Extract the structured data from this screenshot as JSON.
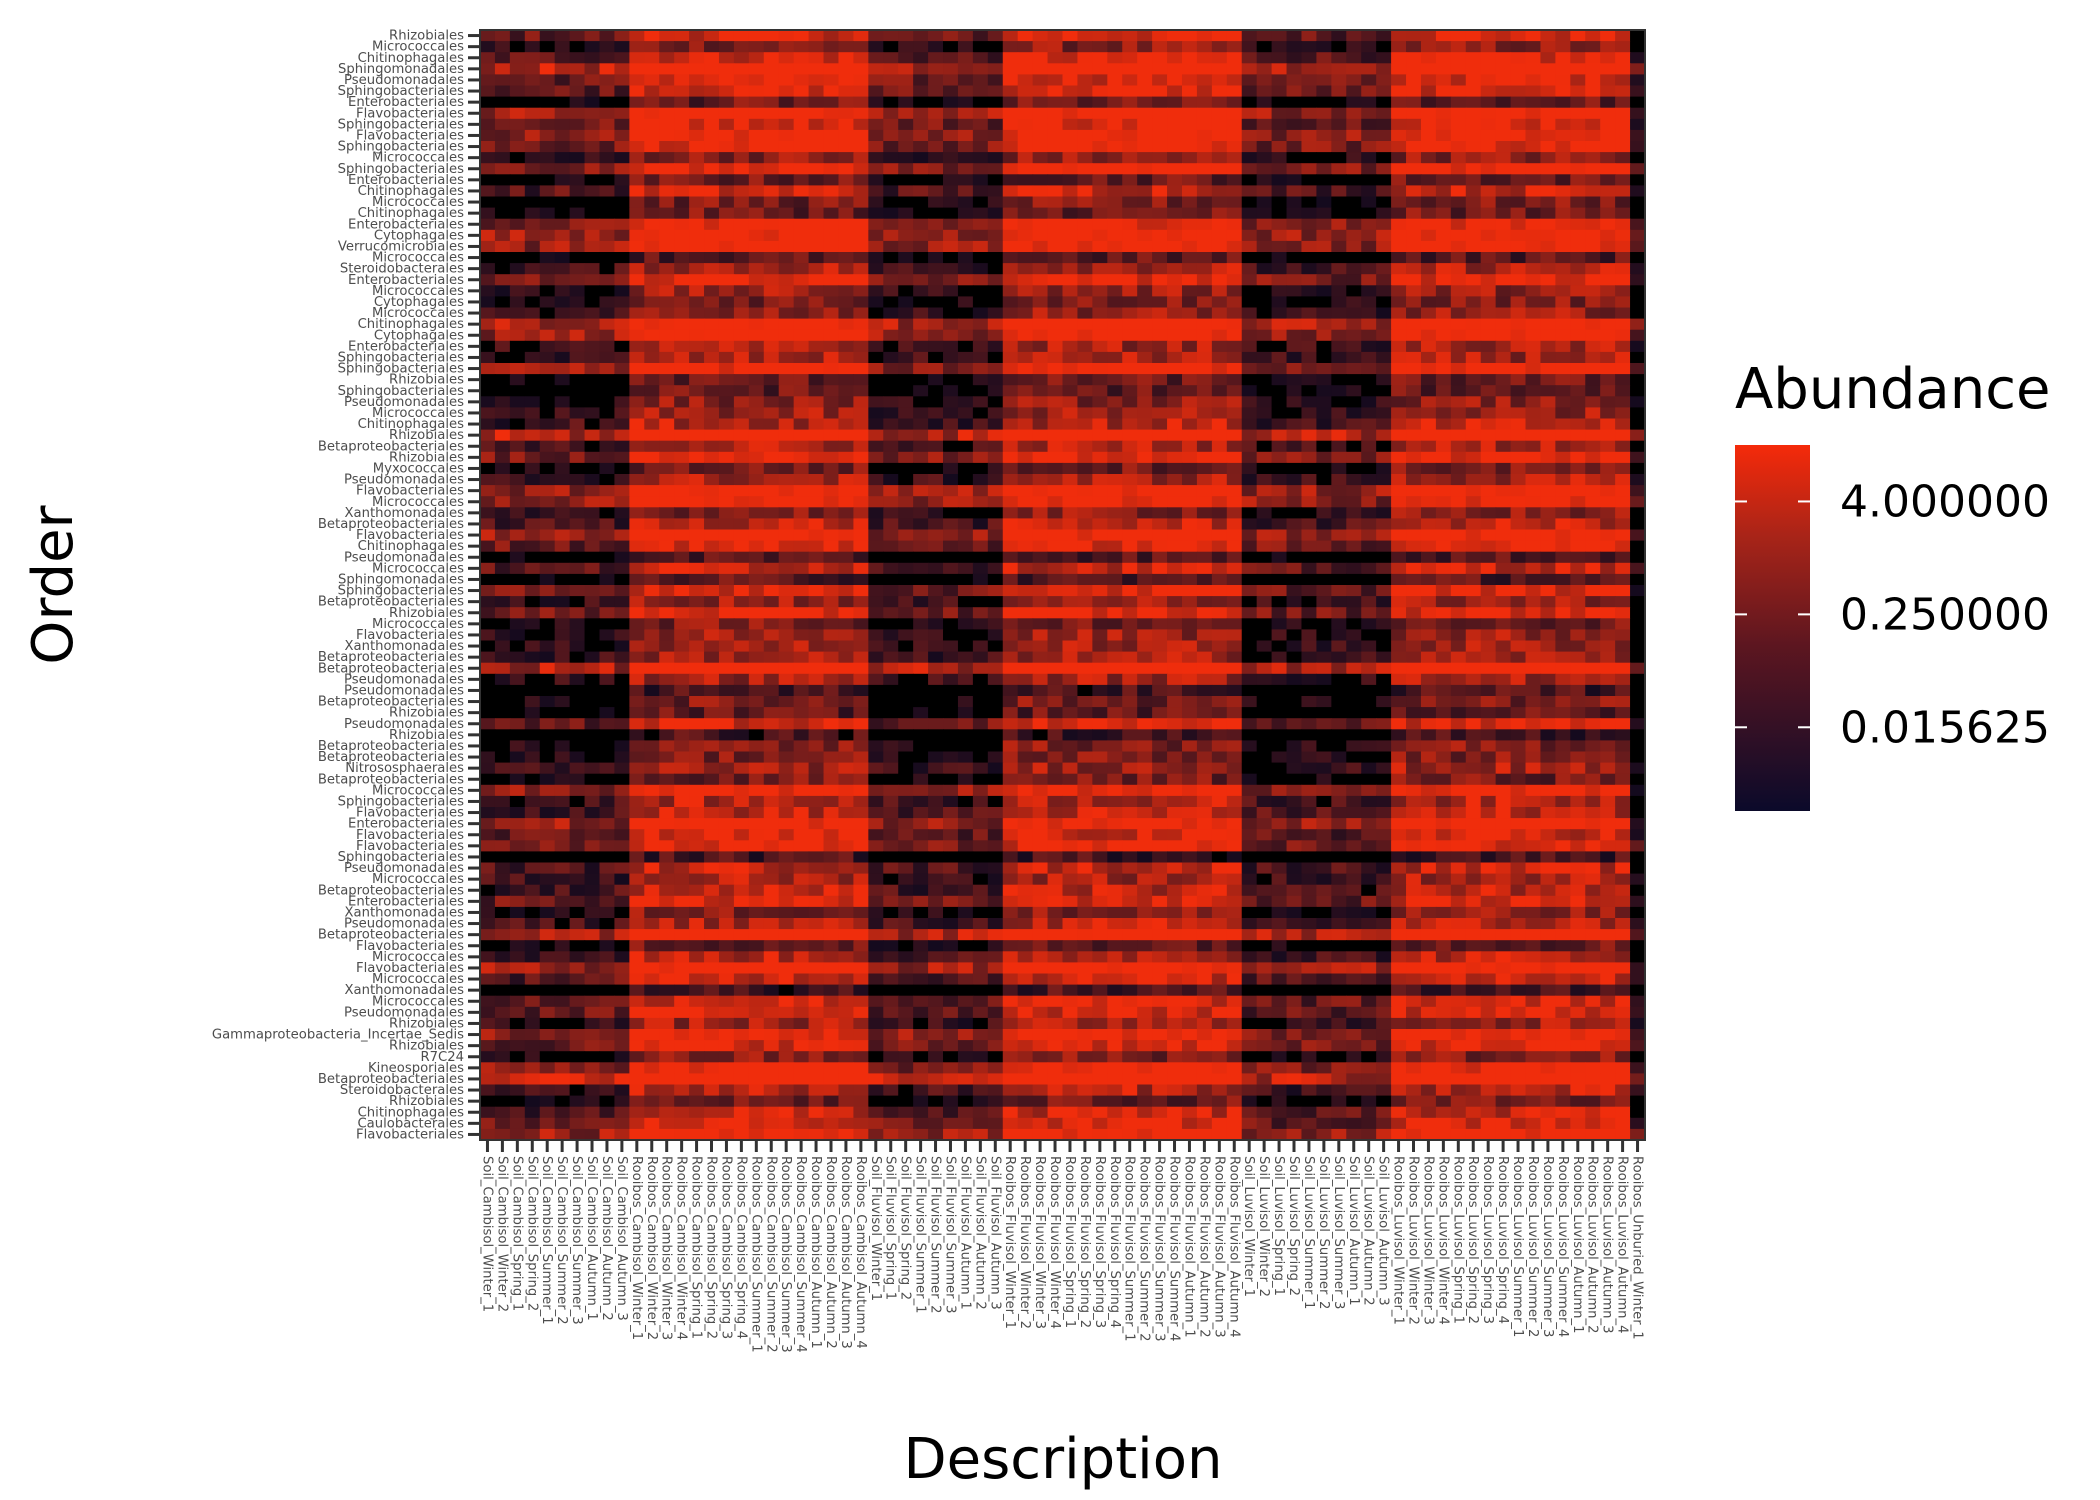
{
  "chart_data": {
    "type": "heatmap",
    "title": "",
    "xlabel": "Description",
    "ylabel": "Order",
    "legend": {
      "title": "Abundance",
      "placement": "right",
      "scale": "log2",
      "breaks": [
        "4.000000",
        "0.250000",
        "0.015625"
      ],
      "break_values": [
        4.0,
        0.25,
        0.015625
      ],
      "range": [
        0.002,
        16
      ],
      "colors": {
        "low": "#0b0a2a",
        "mid": "#6e1c1c",
        "high": "#f52a0a",
        "zero": "#000000"
      }
    },
    "x_categories": [
      "Soil_Cambisol_Winter_1",
      "Soil_Cambisol_Winter_2",
      "Soil_Cambisol_Spring_1",
      "Soil_Cambisol_Spring_2",
      "Soil_Cambisol_Summer_1",
      "Soil_Cambisol_Summer_2",
      "Soil_Cambisol_Summer_3",
      "Soil_Cambisol_Autumn_1",
      "Soil_Cambisol_Autumn_2",
      "Soil_Cambisol_Autumn_3",
      "Rooibos_Cambisol_Winter_1",
      "Rooibos_Cambisol_Winter_2",
      "Rooibos_Cambisol_Winter_3",
      "Rooibos_Cambisol_Winter_4",
      "Rooibos_Cambisol_Spring_1",
      "Rooibos_Cambisol_Spring_2",
      "Rooibos_Cambisol_Spring_3",
      "Rooibos_Cambisol_Spring_4",
      "Rooibos_Cambisol_Summer_1",
      "Rooibos_Cambisol_Summer_2",
      "Rooibos_Cambisol_Summer_3",
      "Rooibos_Cambisol_Summer_4",
      "Rooibos_Cambisol_Autumn_1",
      "Rooibos_Cambisol_Autumn_2",
      "Rooibos_Cambisol_Autumn_3",
      "Rooibos_Cambisol_Autumn_4",
      "Soil_Fluvisol_Winter_1",
      "Soil_Fluvisol_Spring_1",
      "Soil_Fluvisol_Spring_2",
      "Soil_Fluvisol_Summer_1",
      "Soil_Fluvisol_Summer_2",
      "Soil_Fluvisol_Summer_3",
      "Soil_Fluvisol_Autumn_1",
      "Soil_Fluvisol_Autumn_2",
      "Soil_Fluvisol_Autumn_3",
      "Rooibos_Fluvisol_Winter_1",
      "Rooibos_Fluvisol_Winter_2",
      "Rooibos_Fluvisol_Winter_3",
      "Rooibos_Fluvisol_Winter_4",
      "Rooibos_Fluvisol_Spring_1",
      "Rooibos_Fluvisol_Spring_2",
      "Rooibos_Fluvisol_Spring_3",
      "Rooibos_Fluvisol_Spring_4",
      "Rooibos_Fluvisol_Summer_1",
      "Rooibos_Fluvisol_Summer_2",
      "Rooibos_Fluvisol_Summer_3",
      "Rooibos_Fluvisol_Summer_4",
      "Rooibos_Fluvisol_Autumn_1",
      "Rooibos_Fluvisol_Autumn_2",
      "Rooibos_Fluvisol_Autumn_3",
      "Rooibos_Fluvisol_Autumn_4",
      "Soil_Luvisol_Winter_1",
      "Soil_Luvisol_Winter_2",
      "Soil_Luvisol_Spring_1",
      "Soil_Luvisol_Spring_2",
      "Soil_Luvisol_Summer_1",
      "Soil_Luvisol_Summer_2",
      "Soil_Luvisol_Summer_3",
      "Soil_Luvisol_Autumn_1",
      "Soil_Luvisol_Autumn_2",
      "Soil_Luvisol_Autumn_3",
      "Rooibos_Luvisol_Winter_1",
      "Rooibos_Luvisol_Winter_2",
      "Rooibos_Luvisol_Winter_3",
      "Rooibos_Luvisol_Winter_4",
      "Rooibos_Luvisol_Spring_1",
      "Rooibos_Luvisol_Spring_2",
      "Rooibos_Luvisol_Spring_3",
      "Rooibos_Luvisol_Spring_4",
      "Rooibos_Luvisol_Summer_1",
      "Rooibos_Luvisol_Summer_2",
      "Rooibos_Luvisol_Summer_3",
      "Rooibos_Luvisol_Summer_4",
      "Rooibos_Luvisol_Autumn_1",
      "Rooibos_Luvisol_Autumn_2",
      "Rooibos_Luvisol_Autumn_3",
      "Rooibos_Luvisol_Autumn_4",
      "Rooibos_Unburied_Winter_1"
    ],
    "y_categories": [
      "Rhizobiales",
      "Micrococcales",
      "Chitinophagales",
      "Sphingomonadales",
      "Pseudomonadales",
      "Sphingobacteriales",
      "Enterobacteriales",
      "Flavobacteriales",
      "Sphingobacteriales",
      "Flavobacteriales",
      "Sphingobacteriales",
      "Micrococcales",
      "Sphingobacteriales",
      "Enterobacteriales",
      "Chitinophagales",
      "Micrococcales",
      "Chitinophagales",
      "Enterobacteriales",
      "Cytophagales",
      "Verrucomicrobiales",
      "Micrococcales",
      "Steroidobacterales",
      "Enterobacteriales",
      "Micrococcales",
      "Cytophagales",
      "Micrococcales",
      "Chitinophagales",
      "Cytophagales",
      "Enterobacteriales",
      "Sphingobacteriales",
      "Sphingobacteriales",
      "Rhizobiales",
      "Sphingobacteriales",
      "Pseudomonadales",
      "Micrococcales",
      "Chitinophagales",
      "Rhizobiales",
      "Betaproteobacteriales",
      "Rhizobiales",
      "Myxococcales",
      "Pseudomonadales",
      "Flavobacteriales",
      "Micrococcales",
      "Xanthomonadales",
      "Betaproteobacteriales",
      "Flavobacteriales",
      "Chitinophagales",
      "Pseudomonadales",
      "Micrococcales",
      "Sphingomonadales",
      "Sphingobacteriales",
      "Betaproteobacteriales",
      "Rhizobiales",
      "Micrococcales",
      "Flavobacteriales",
      "Xanthomonadales",
      "Betaproteobacteriales",
      "Betaproteobacteriales",
      "Pseudomonadales",
      "Pseudomonadales",
      "Betaproteobacteriales",
      "Rhizobiales",
      "Pseudomonadales",
      "Rhizobiales",
      "Betaproteobacteriales",
      "Betaproteobacteriales",
      "Nitrososphaerales",
      "Betaproteobacteriales",
      "Micrococcales",
      "Sphingobacteriales",
      "Flavobacteriales",
      "Enterobacteriales",
      "Flavobacteriales",
      "Flavobacteriales",
      "Sphingobacteriales",
      "Pseudomonadales",
      "Micrococcales",
      "Betaproteobacteriales",
      "Enterobacteriales",
      "Xanthomonadales",
      "Pseudomonadales",
      "Betaproteobacteriales",
      "Flavobacteriales",
      "Micrococcales",
      "Flavobacteriales",
      "Micrococcales",
      "Xanthomonadales",
      "Micrococcales",
      "Pseudomonadales",
      "Rhizobiales",
      "Gammaproteobacteria_Incertae_Sedis",
      "Rhizobiales",
      "R7C24",
      "Kineosporiales",
      "Betaproteobacteriales",
      "Steroidobacterales",
      "Rhizobiales",
      "Chitinophagales",
      "Caulobacterales",
      "Flavobacteriales"
    ],
    "values_note": "Cell values are ~0 (black) to ~16 on a log2 color scale; bright rows cluster in Rooibos sample columns."
  }
}
